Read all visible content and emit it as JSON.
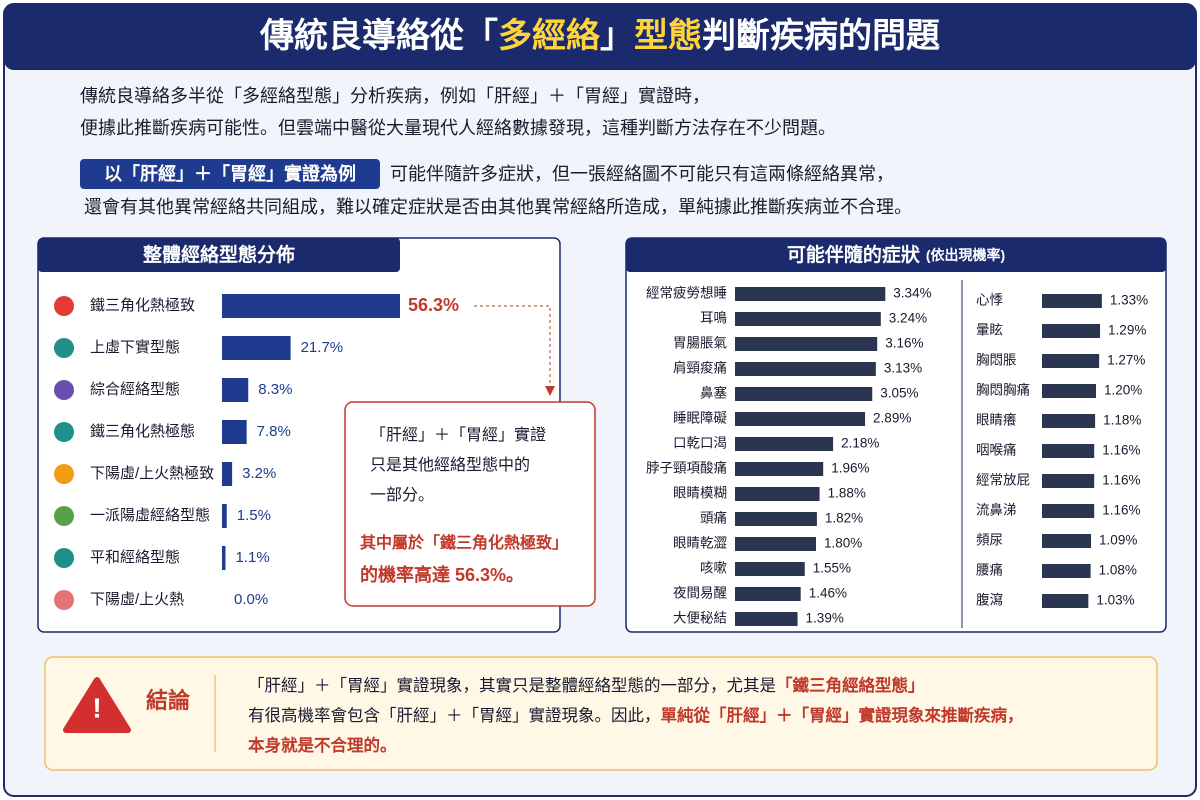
{
  "header": {
    "title": [
      {
        "text": "傳統良導絡從「",
        "highlight": false
      },
      {
        "text": "多經絡",
        "highlight": true
      },
      {
        "text": "」",
        "highlight": false
      },
      {
        "text": "型態",
        "highlight": true
      },
      {
        "text": "判斷疾病的問題",
        "highlight": false
      }
    ]
  },
  "intro": {
    "lines": [
      "傳統良導絡多半從「多經絡型態」分析疾病，例如「肝經」＋「胃經」實證時，",
      "便據此推斷疾病可能性。但雲端中醫從大量現代人經絡數據發現，這種判斷方法存在不少問題。"
    ],
    "tag": "以「肝經」＋「胃經」實證為例",
    "example_lines": [
      "可能伴隨許多症狀，但一張經絡圖不可能只有這兩條經絡異常，",
      "還會有其他異常經絡共同組成，難以確定症狀是否由其他異常經絡所造成，單純據此推斷疾病並不合理。"
    ]
  },
  "chart_data": [
    {
      "type": "hbar",
      "title": "整體經絡型態分佈",
      "color": "#1f3b8f",
      "categories": [
        "鐵三角化熱極致",
        "上虛下實型態",
        "綜合經絡型態",
        "鐵三角化熱極態",
        "下陽虛/上火熱極致",
        "一派陽虛經絡型態",
        "平和經絡型態",
        "下陽虛/上火熱"
      ],
      "values": [
        56.3,
        21.7,
        8.3,
        7.8,
        3.2,
        1.5,
        1.1,
        0.0
      ],
      "value_labels": [
        "56.3%",
        "21.7%",
        "8.3%",
        "7.8%",
        "3.2%",
        "1.5%",
        "1.1%",
        "0.0%"
      ]
    },
    {
      "type": "hbar",
      "title": "可能伴隨的症狀",
      "subtitle": "(依出現機率)",
      "color": "#2a3550",
      "categories": [
        "經常疲勞想睡",
        "耳鳴",
        "胃腸脹氣",
        "肩頸痠痛",
        "鼻塞",
        "睡眠障礙",
        "口乾口渴",
        "脖子頸項酸痛",
        "眼睛模糊",
        "頭痛",
        "眼睛乾澀",
        "咳嗽",
        "夜間易醒",
        "大便秘結",
        "心悸",
        "暈眩",
        "胸悶脹",
        "胸悶胸痛",
        "眼睛癢",
        "咽喉痛",
        "經常放屁",
        "流鼻涕",
        "頻尿",
        "腰痛",
        "腹瀉"
      ],
      "values": [
        3.34,
        3.24,
        3.16,
        3.13,
        3.05,
        2.89,
        2.18,
        1.96,
        1.88,
        1.82,
        1.8,
        1.55,
        1.46,
        1.39,
        1.33,
        1.29,
        1.27,
        1.2,
        1.18,
        1.16,
        1.16,
        1.16,
        1.09,
        1.08,
        1.03
      ],
      "value_labels": [
        "3.34%",
        "3.24%",
        "3.16%",
        "3.13%",
        "3.05%",
        "2.89%",
        "2.18%",
        "1.96%",
        "1.88%",
        "1.82%",
        "1.80%",
        "1.55%",
        "1.46%",
        "1.39%",
        "1.33%",
        "1.29%",
        "1.27%",
        "1.20%",
        "1.18%",
        "1.16%",
        "1.16%",
        "1.16%",
        "1.09%",
        "1.08%",
        "1.03%"
      ]
    }
  ],
  "callout": {
    "lines": [
      "「肝經」＋「胃經」實證",
      "只是其他經絡型態中的",
      "一部分。"
    ],
    "emphasis_lines": [
      "其中屬於「鐵三角化熱極致」",
      "的機率高達 56.3%。"
    ]
  },
  "conclusion": {
    "label": "結論",
    "lines": [
      [
        {
          "text": "「肝經」＋「胃經」實證現象，其實只是整體經絡型態的一部分，尤其是",
          "highlight": false
        },
        {
          "text": "「鐵三角經絡型態」",
          "highlight": true
        }
      ],
      [
        {
          "text": "有很高機率會包含「肝經」＋「胃經」實證現象。因此，",
          "highlight": false
        },
        {
          "text": "單純從「肝經」＋「胃經」實證現象來推斷疾病，",
          "highlight": true
        }
      ],
      [
        {
          "text": "本身就是不合理的。",
          "highlight": true
        }
      ]
    ]
  }
}
